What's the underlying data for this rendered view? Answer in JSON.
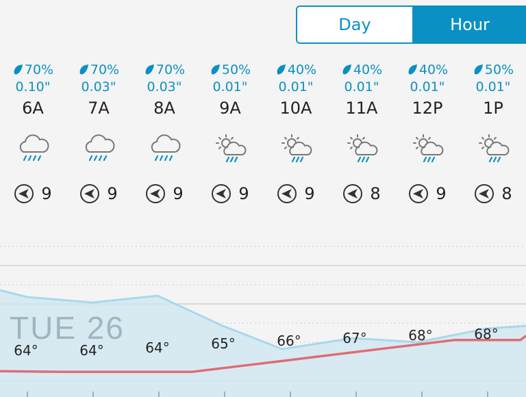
{
  "toggle": {
    "day_label": "Day",
    "hour_label": "Hour",
    "selected": "Hour"
  },
  "colors": {
    "accent": "#0a90c2",
    "temp_line": "#e06b73",
    "fill": "#cde7f1",
    "fill_line": "#a8d8ec"
  },
  "hours": [
    {
      "time": "6A",
      "precip_prob": "70%",
      "precip_amt": "0.10\"",
      "icon": "rain-cloud-icon",
      "wind": "9",
      "temp": "64°"
    },
    {
      "time": "7A",
      "precip_prob": "70%",
      "precip_amt": "0.03\"",
      "icon": "rain-cloud-icon",
      "wind": "9",
      "temp": "64°"
    },
    {
      "time": "8A",
      "precip_prob": "70%",
      "precip_amt": "0.03\"",
      "icon": "rain-cloud-icon",
      "wind": "9",
      "temp": "64°"
    },
    {
      "time": "9A",
      "precip_prob": "50%",
      "precip_amt": "0.01\"",
      "icon": "sun-cloud-rain-icon",
      "wind": "9",
      "temp": "65°"
    },
    {
      "time": "10A",
      "precip_prob": "40%",
      "precip_amt": "0.01\"",
      "icon": "sun-cloud-rain-icon",
      "wind": "9",
      "temp": "66°"
    },
    {
      "time": "11A",
      "precip_prob": "40%",
      "precip_amt": "0.01\"",
      "icon": "sun-cloud-rain-icon",
      "wind": "8",
      "temp": "67°"
    },
    {
      "time": "12P",
      "precip_prob": "40%",
      "precip_amt": "0.01\"",
      "icon": "sun-cloud-rain-icon",
      "wind": "9",
      "temp": "68°"
    },
    {
      "time": "1P",
      "precip_prob": "50%",
      "precip_amt": "0.01\"",
      "icon": "sun-cloud-rain-icon",
      "wind": "8",
      "temp": "68°"
    }
  ],
  "day_label": "TUE 26"
}
